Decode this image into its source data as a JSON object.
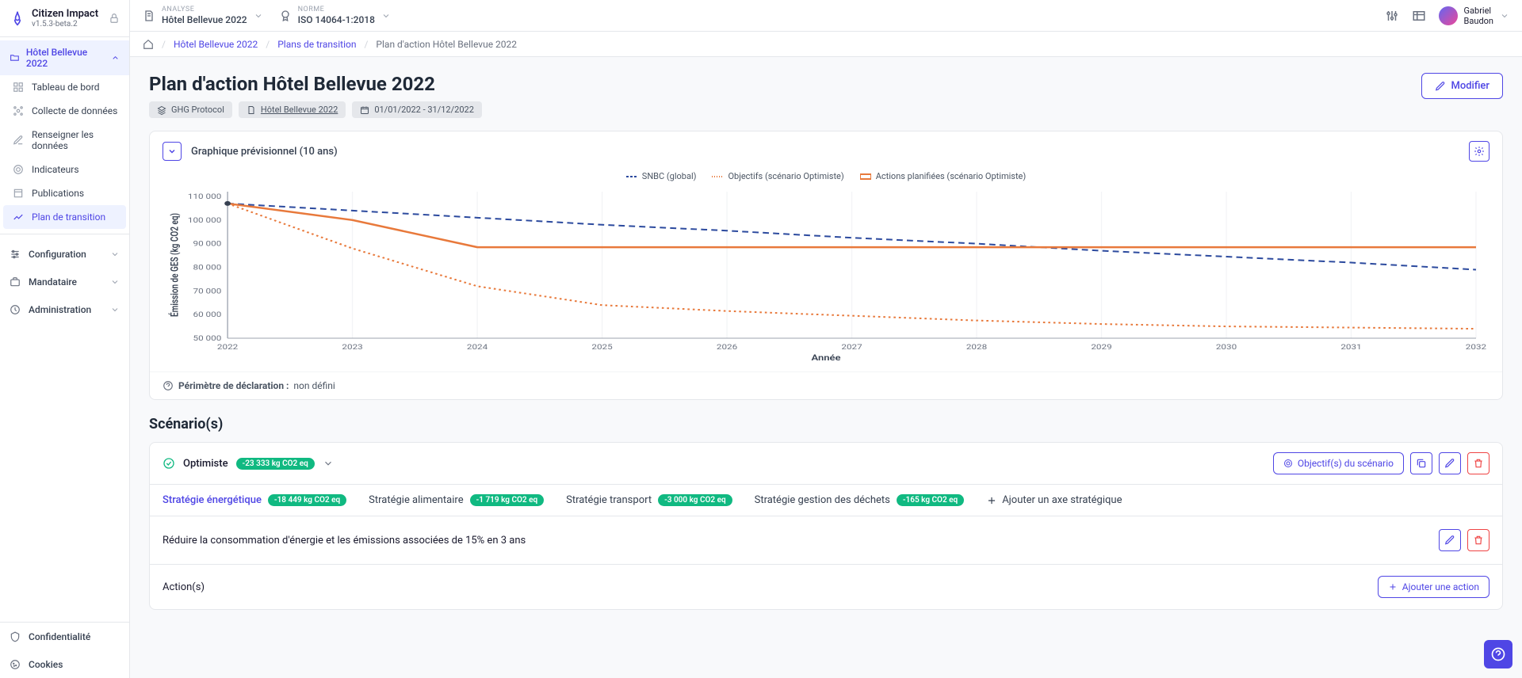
{
  "app": {
    "name": "Citizen Impact",
    "version": "v1.5.3-beta.2"
  },
  "context": {
    "analyse_label": "ANALYSE",
    "analyse_value": "Hôtel Bellevue 2022",
    "norme_label": "NORME",
    "norme_value": "ISO 14064-1:2018"
  },
  "user": {
    "first_name": "Gabriel",
    "last_name": "Baudon"
  },
  "sidebar": {
    "project_header": "Hôtel Bellevue 2022",
    "items": [
      {
        "label": "Tableau de bord"
      },
      {
        "label": "Collecte de données"
      },
      {
        "label": "Renseigner les données"
      },
      {
        "label": "Indicateurs"
      },
      {
        "label": "Publications"
      },
      {
        "label": "Plan de transition"
      }
    ],
    "sections": [
      {
        "label": "Configuration"
      },
      {
        "label": "Mandataire"
      },
      {
        "label": "Administration"
      }
    ],
    "bottom": [
      {
        "label": "Confidentialité"
      },
      {
        "label": "Cookies"
      }
    ]
  },
  "breadcrumb": {
    "link1": "Hôtel Bellevue 2022",
    "link2": "Plans de transition",
    "current": "Plan d'action Hôtel Bellevue 2022"
  },
  "page": {
    "title": "Plan d'action Hôtel Bellevue 2022",
    "chip_protocol": "GHG Protocol",
    "chip_source": "Hôtel Bellevue 2022",
    "chip_dates": "01/01/2022 - 31/12/2022",
    "modify": "Modifier"
  },
  "chart": {
    "title": "Graphique prévisionnel (10 ans)",
    "legend": {
      "snbc": "SNBC (global)",
      "objectifs": "Objectifs (scénario Optimiste)",
      "actions": "Actions planifiées (scénario Optimiste)"
    },
    "y_label": "Émission de GES (kg CO2 eq)",
    "x_label": "Année",
    "y_ticks": [
      "50 000",
      "60 000",
      "70 000",
      "80 000",
      "90 000",
      "100 000",
      "110 000"
    ],
    "y_values": [
      50000,
      60000,
      70000,
      80000,
      90000,
      100000,
      110000
    ],
    "ylim": [
      50000,
      112000
    ],
    "x_ticks": [
      "2022",
      "2023",
      "2024",
      "2025",
      "2026",
      "2027",
      "2028",
      "2029",
      "2030",
      "2031",
      "2032"
    ],
    "series": {
      "snbc": {
        "color": "#2c4a9e",
        "dash": "6,4",
        "points": [
          [
            2022,
            107000
          ],
          [
            2023,
            104000
          ],
          [
            2024,
            101000
          ],
          [
            2025,
            98000
          ],
          [
            2026,
            95500
          ],
          [
            2027,
            92500
          ],
          [
            2028,
            90000
          ],
          [
            2029,
            87000
          ],
          [
            2030,
            84500
          ],
          [
            2031,
            82000
          ],
          [
            2032,
            79000
          ]
        ]
      },
      "objectifs": {
        "color": "#e8793b",
        "dash": "2,3",
        "points": [
          [
            2022,
            107000
          ],
          [
            2023,
            88000
          ],
          [
            2024,
            72000
          ],
          [
            2025,
            64000
          ],
          [
            2026,
            61500
          ],
          [
            2027,
            59500
          ],
          [
            2028,
            57500
          ],
          [
            2029,
            56000
          ],
          [
            2030,
            55000
          ],
          [
            2031,
            54500
          ],
          [
            2032,
            54000
          ]
        ]
      },
      "actions": {
        "color": "#e8793b",
        "dash": "none",
        "points": [
          [
            2022,
            107000
          ],
          [
            2023,
            100000
          ],
          [
            2024,
            88500
          ],
          [
            2025,
            88500
          ],
          [
            2026,
            88500
          ],
          [
            2027,
            88500
          ],
          [
            2028,
            88500
          ],
          [
            2029,
            88500
          ],
          [
            2030,
            88500
          ],
          [
            2031,
            88500
          ],
          [
            2032,
            88500
          ]
        ]
      }
    },
    "footer_label": "Périmètre de déclaration :",
    "footer_value": "non défini"
  },
  "scenarios": {
    "title": "Scénario(s)",
    "name": "Optimiste",
    "total_badge": "-23 333 kg CO2 eq",
    "btn_objectifs": "Objectif(s) du scénario",
    "tabs": [
      {
        "label": "Stratégie énergétique",
        "badge": "-18 449 kg CO2 eq",
        "active": true
      },
      {
        "label": "Stratégie alimentaire",
        "badge": "-1 719 kg CO2 eq"
      },
      {
        "label": "Stratégie transport",
        "badge": "-3 000 kg CO2 eq"
      },
      {
        "label": "Stratégie gestion des déchets",
        "badge": "-165 kg CO2 eq"
      }
    ],
    "add_axis": "Ajouter un axe stratégique",
    "strategy_desc": "Réduire la consommation d'énergie et les émissions associées de 15% en 3 ans",
    "actions_title": "Action(s)",
    "add_action": "Ajouter une action"
  },
  "colors": {
    "primary": "#4f46e5",
    "green": "#10b981",
    "danger": "#ef4444"
  }
}
